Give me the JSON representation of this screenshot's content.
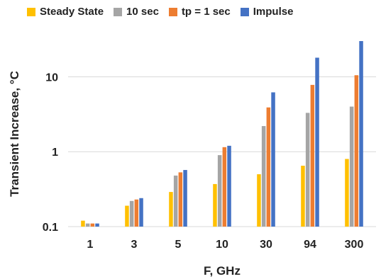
{
  "chart_data": {
    "type": "bar",
    "title": "",
    "xlabel": "F, GHz",
    "ylabel": "Transient Increase, °C",
    "yscale": "log",
    "ylim": [
      0.1,
      30
    ],
    "yticks": [
      "0.1",
      "1",
      "10"
    ],
    "ytick_values": [
      0.1,
      1,
      10
    ],
    "categories": [
      "1",
      "3",
      "5",
      "10",
      "30",
      "94",
      "300"
    ],
    "legend_position": "top",
    "grid": "horizontal",
    "series": [
      {
        "name": "Steady State",
        "color": "#FFC000",
        "values": [
          0.12,
          0.19,
          0.29,
          0.37,
          0.5,
          0.65,
          0.8
        ]
      },
      {
        "name": "10 sec",
        "color": "#A5A5A5",
        "values": [
          0.11,
          0.22,
          0.48,
          0.9,
          2.2,
          3.3,
          4.0
        ]
      },
      {
        "name": "tp = 1 sec",
        "color": "#ED7D31",
        "values": [
          0.11,
          0.23,
          0.53,
          1.15,
          3.9,
          7.8,
          10.5
        ]
      },
      {
        "name": "Impulse",
        "color": "#4472C4",
        "values": [
          0.11,
          0.24,
          0.57,
          1.2,
          6.2,
          18,
          30
        ]
      }
    ]
  }
}
